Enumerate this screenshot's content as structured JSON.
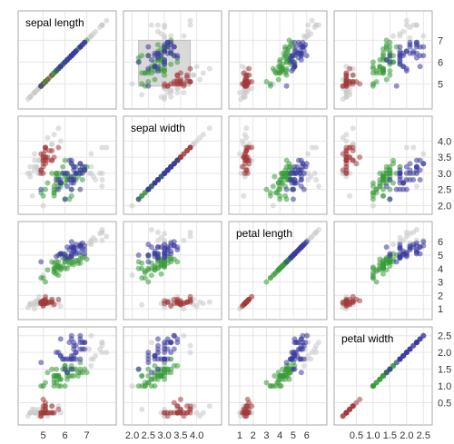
{
  "chart_data": {
    "type": "scatter",
    "title": "",
    "variables": [
      {
        "key": "sepal_length",
        "label": "sepal length",
        "range": [
          4.1,
          8.1
        ],
        "ticks": [
          "5",
          "6",
          "7"
        ],
        "tick_values": [
          5,
          6,
          7
        ]
      },
      {
        "key": "sepal_width",
        "label": "sepal width",
        "range": [
          1.9,
          4.6
        ],
        "ticks": [
          "2.0",
          "2.5",
          "3.0",
          "3.5",
          "4.0"
        ],
        "tick_values": [
          2.0,
          2.5,
          3.0,
          3.5,
          4.0
        ]
      },
      {
        "key": "petal_length",
        "label": "petal length",
        "range": [
          0.6,
          7.1
        ],
        "ticks": [
          "1",
          "2",
          "3",
          "4",
          "5",
          "6"
        ],
        "tick_values": [
          1,
          2,
          3,
          4,
          5,
          6
        ]
      },
      {
        "key": "petal_width",
        "label": "petal width",
        "range": [
          0.0,
          2.6
        ],
        "ticks": [
          "0.5",
          "1.0",
          "1.5",
          "2.0",
          "2.5"
        ],
        "tick_values": [
          0.5,
          1.0,
          1.5,
          2.0,
          2.5
        ]
      }
    ],
    "bottom_axis_labels": [
      [
        "5",
        "6",
        "7"
      ],
      [
        "2.0",
        "2.5",
        "3.0",
        "3.5",
        "4.0"
      ],
      [
        "1",
        "2",
        "3",
        "4",
        "5",
        "6"
      ],
      [
        "0.5",
        "1.0",
        "1.5",
        "2.0",
        "2.5"
      ]
    ],
    "right_axis_labels": [
      [
        "5",
        "6",
        "7"
      ],
      [
        "2.0",
        "2.5",
        "3.0",
        "3.5",
        "4.0"
      ],
      [
        "1",
        "2",
        "3",
        "4",
        "5",
        "6"
      ],
      [
        "0.5",
        "1.0",
        "1.5",
        "2.0",
        "2.5"
      ]
    ],
    "grid": true,
    "legend": "none",
    "brush": {
      "x_variable": "sepal_width",
      "y_variable": "sepal_length",
      "x_range": [
        2.2,
        3.8
      ],
      "y_range": [
        4.9,
        7.0
      ]
    },
    "series": [
      {
        "species_color": "#a33a3a",
        "points": [
          [
            5.1,
            3.5,
            1.4,
            0.2
          ],
          [
            4.9,
            3.0,
            1.4,
            0.2
          ],
          [
            4.7,
            3.2,
            1.3,
            0.2
          ],
          [
            4.6,
            3.1,
            1.5,
            0.2
          ],
          [
            5.0,
            3.6,
            1.4,
            0.2
          ],
          [
            5.4,
            3.9,
            1.7,
            0.4
          ],
          [
            4.6,
            3.4,
            1.4,
            0.3
          ],
          [
            5.0,
            3.4,
            1.5,
            0.2
          ],
          [
            4.4,
            2.9,
            1.4,
            0.2
          ],
          [
            4.9,
            3.1,
            1.5,
            0.1
          ],
          [
            5.4,
            3.7,
            1.5,
            0.2
          ],
          [
            4.8,
            3.4,
            1.6,
            0.2
          ],
          [
            4.8,
            3.0,
            1.4,
            0.1
          ],
          [
            4.3,
            3.0,
            1.1,
            0.1
          ],
          [
            5.8,
            4.0,
            1.2,
            0.2
          ],
          [
            5.7,
            4.4,
            1.5,
            0.4
          ],
          [
            5.4,
            3.9,
            1.3,
            0.4
          ],
          [
            5.1,
            3.5,
            1.4,
            0.3
          ],
          [
            5.7,
            3.8,
            1.7,
            0.3
          ],
          [
            5.1,
            3.8,
            1.5,
            0.3
          ],
          [
            5.4,
            3.4,
            1.7,
            0.2
          ],
          [
            5.1,
            3.7,
            1.5,
            0.4
          ],
          [
            4.6,
            3.6,
            1.0,
            0.2
          ],
          [
            5.1,
            3.3,
            1.7,
            0.5
          ],
          [
            4.8,
            3.4,
            1.9,
            0.2
          ],
          [
            5.0,
            3.0,
            1.6,
            0.2
          ],
          [
            5.0,
            3.4,
            1.6,
            0.4
          ],
          [
            5.2,
            3.5,
            1.5,
            0.2
          ],
          [
            5.2,
            3.4,
            1.4,
            0.2
          ],
          [
            4.7,
            3.2,
            1.6,
            0.2
          ],
          [
            4.8,
            3.1,
            1.6,
            0.2
          ],
          [
            5.4,
            3.4,
            1.5,
            0.4
          ],
          [
            5.2,
            4.1,
            1.5,
            0.1
          ],
          [
            5.5,
            4.2,
            1.4,
            0.2
          ],
          [
            4.9,
            3.1,
            1.5,
            0.2
          ],
          [
            5.0,
            3.2,
            1.2,
            0.2
          ],
          [
            5.5,
            3.5,
            1.3,
            0.2
          ],
          [
            4.9,
            3.6,
            1.4,
            0.1
          ],
          [
            4.4,
            3.0,
            1.3,
            0.2
          ],
          [
            5.1,
            3.4,
            1.5,
            0.2
          ],
          [
            5.0,
            3.5,
            1.3,
            0.3
          ],
          [
            4.5,
            2.3,
            1.3,
            0.3
          ],
          [
            4.4,
            3.2,
            1.3,
            0.2
          ],
          [
            5.0,
            3.5,
            1.6,
            0.6
          ],
          [
            5.1,
            3.8,
            1.9,
            0.4
          ],
          [
            4.8,
            3.0,
            1.4,
            0.3
          ],
          [
            5.1,
            3.8,
            1.6,
            0.2
          ],
          [
            4.6,
            3.2,
            1.4,
            0.2
          ],
          [
            5.3,
            3.7,
            1.5,
            0.2
          ],
          [
            5.0,
            3.3,
            1.4,
            0.2
          ]
        ]
      },
      {
        "species_color": "#3a9a3a",
        "points": [
          [
            7.0,
            3.2,
            4.7,
            1.4
          ],
          [
            6.4,
            3.2,
            4.5,
            1.5
          ],
          [
            6.9,
            3.1,
            4.9,
            1.5
          ],
          [
            5.5,
            2.3,
            4.0,
            1.3
          ],
          [
            6.5,
            2.8,
            4.6,
            1.5
          ],
          [
            5.7,
            2.8,
            4.5,
            1.3
          ],
          [
            6.3,
            3.3,
            4.7,
            1.6
          ],
          [
            4.9,
            2.4,
            3.3,
            1.0
          ],
          [
            6.6,
            2.9,
            4.6,
            1.3
          ],
          [
            5.2,
            2.7,
            3.9,
            1.4
          ],
          [
            5.0,
            2.0,
            3.5,
            1.0
          ],
          [
            5.9,
            3.0,
            4.2,
            1.5
          ],
          [
            6.0,
            2.2,
            4.0,
            1.0
          ],
          [
            6.1,
            2.9,
            4.7,
            1.4
          ],
          [
            5.6,
            2.9,
            3.6,
            1.3
          ],
          [
            6.7,
            3.1,
            4.4,
            1.4
          ],
          [
            5.6,
            3.0,
            4.5,
            1.5
          ],
          [
            5.8,
            2.7,
            4.1,
            1.0
          ],
          [
            6.2,
            2.2,
            4.5,
            1.5
          ],
          [
            5.6,
            2.5,
            3.9,
            1.1
          ],
          [
            5.9,
            3.2,
            4.8,
            1.8
          ],
          [
            6.1,
            2.8,
            4.0,
            1.3
          ],
          [
            6.3,
            2.5,
            4.9,
            1.5
          ],
          [
            6.1,
            2.8,
            4.7,
            1.2
          ],
          [
            6.4,
            2.9,
            4.3,
            1.3
          ],
          [
            6.6,
            3.0,
            4.4,
            1.4
          ],
          [
            6.8,
            2.8,
            4.8,
            1.4
          ],
          [
            6.7,
            3.0,
            5.0,
            1.7
          ],
          [
            6.0,
            2.9,
            4.5,
            1.5
          ],
          [
            5.7,
            2.6,
            3.5,
            1.0
          ],
          [
            5.5,
            2.4,
            3.8,
            1.1
          ],
          [
            5.5,
            2.4,
            3.7,
            1.0
          ],
          [
            5.8,
            2.7,
            3.9,
            1.2
          ],
          [
            6.0,
            2.7,
            5.1,
            1.6
          ],
          [
            5.4,
            3.0,
            4.5,
            1.5
          ],
          [
            6.0,
            3.4,
            4.5,
            1.6
          ],
          [
            6.7,
            3.1,
            4.7,
            1.5
          ],
          [
            6.3,
            2.3,
            4.4,
            1.3
          ],
          [
            5.6,
            3.0,
            4.1,
            1.3
          ],
          [
            5.5,
            2.5,
            4.0,
            1.3
          ],
          [
            5.5,
            2.6,
            4.4,
            1.2
          ],
          [
            6.1,
            3.0,
            4.6,
            1.4
          ],
          [
            5.8,
            2.6,
            4.0,
            1.2
          ],
          [
            5.0,
            2.3,
            3.3,
            1.0
          ],
          [
            5.6,
            2.7,
            4.2,
            1.3
          ],
          [
            5.7,
            3.0,
            4.2,
            1.2
          ],
          [
            5.7,
            2.9,
            4.2,
            1.3
          ],
          [
            6.2,
            2.9,
            4.3,
            1.3
          ],
          [
            5.1,
            2.5,
            3.0,
            1.1
          ],
          [
            5.7,
            2.8,
            4.1,
            1.3
          ]
        ]
      },
      {
        "species_color": "#3a3a9e",
        "points": [
          [
            6.3,
            3.3,
            6.0,
            2.5
          ],
          [
            5.8,
            2.7,
            5.1,
            1.9
          ],
          [
            7.1,
            3.0,
            5.9,
            2.1
          ],
          [
            6.3,
            2.9,
            5.6,
            1.8
          ],
          [
            6.5,
            3.0,
            5.8,
            2.2
          ],
          [
            7.6,
            3.0,
            6.6,
            2.1
          ],
          [
            4.9,
            2.5,
            4.5,
            1.7
          ],
          [
            7.3,
            2.9,
            6.3,
            1.8
          ],
          [
            6.7,
            2.5,
            5.8,
            1.8
          ],
          [
            7.2,
            3.6,
            6.1,
            2.5
          ],
          [
            6.5,
            3.2,
            5.1,
            2.0
          ],
          [
            6.4,
            2.7,
            5.3,
            1.9
          ],
          [
            6.8,
            3.0,
            5.5,
            2.1
          ],
          [
            5.7,
            2.5,
            5.0,
            2.0
          ],
          [
            5.8,
            2.8,
            5.1,
            2.4
          ],
          [
            6.4,
            3.2,
            5.3,
            2.3
          ],
          [
            6.5,
            3.0,
            5.5,
            1.8
          ],
          [
            7.7,
            3.8,
            6.7,
            2.2
          ],
          [
            7.7,
            2.6,
            6.9,
            2.3
          ],
          [
            6.0,
            2.2,
            5.0,
            1.5
          ],
          [
            6.9,
            3.2,
            5.7,
            2.3
          ],
          [
            5.6,
            2.8,
            4.9,
            2.0
          ],
          [
            7.7,
            2.8,
            6.7,
            2.0
          ],
          [
            6.3,
            2.7,
            4.9,
            1.8
          ],
          [
            6.7,
            3.3,
            5.7,
            2.1
          ],
          [
            7.2,
            3.2,
            6.0,
            1.8
          ],
          [
            6.2,
            2.8,
            4.8,
            1.8
          ],
          [
            6.1,
            3.0,
            4.9,
            1.8
          ],
          [
            6.4,
            2.8,
            5.6,
            2.1
          ],
          [
            7.2,
            3.0,
            5.8,
            1.6
          ],
          [
            7.4,
            2.8,
            6.1,
            1.9
          ],
          [
            7.9,
            3.8,
            6.4,
            2.0
          ],
          [
            6.4,
            2.8,
            5.6,
            2.2
          ],
          [
            6.3,
            2.8,
            5.1,
            1.5
          ],
          [
            6.1,
            2.6,
            5.6,
            1.4
          ],
          [
            7.7,
            3.0,
            6.1,
            2.3
          ],
          [
            6.3,
            3.4,
            5.6,
            2.4
          ],
          [
            6.4,
            3.1,
            5.5,
            1.8
          ],
          [
            6.0,
            3.0,
            4.8,
            1.8
          ],
          [
            6.9,
            3.1,
            5.4,
            2.1
          ],
          [
            6.7,
            3.1,
            5.6,
            2.4
          ],
          [
            6.9,
            3.1,
            5.1,
            2.3
          ],
          [
            5.8,
            2.7,
            5.1,
            1.9
          ],
          [
            6.8,
            3.2,
            5.9,
            2.3
          ],
          [
            6.7,
            3.3,
            5.7,
            2.5
          ],
          [
            6.7,
            3.0,
            5.2,
            2.3
          ],
          [
            6.3,
            2.5,
            5.0,
            1.9
          ],
          [
            6.5,
            3.0,
            5.2,
            2.0
          ],
          [
            6.2,
            3.4,
            5.4,
            2.3
          ],
          [
            5.9,
            3.0,
            5.1,
            1.8
          ]
        ]
      }
    ],
    "colors": {
      "unselected": "#cccccc",
      "cell_border": "#aaaaaa",
      "grid": "#e6e6e6",
      "brush": "#d9d9d9"
    }
  }
}
